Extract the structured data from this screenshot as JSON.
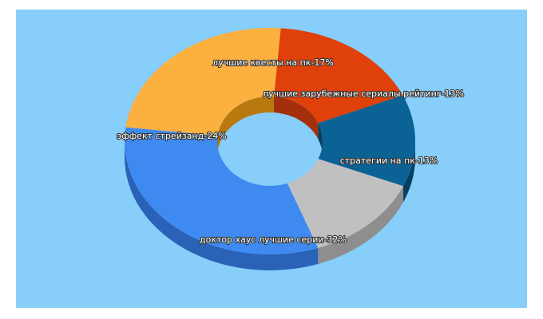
{
  "chart_data": {
    "type": "pie",
    "style": "3d-donut",
    "background": "#87CEFA",
    "label_color": "#ffffff",
    "label_stroke": "#333333",
    "slices": [
      {
        "label": "лучшие квесты на пк-17%",
        "value": 17,
        "color": "#E0400A",
        "side_color": "#A3300A"
      },
      {
        "label": "лучшие зарубежные сериалы рейтинг-13%",
        "value": 13,
        "color": "#0B6295",
        "side_color": "#083F5E"
      },
      {
        "label": "стратегии на пк-13%",
        "value": 13,
        "color": "#C0C0C0",
        "side_color": "#8E8E8E"
      },
      {
        "label": "доктор хаус лучшие серии-32%",
        "value": 32,
        "color": "#3F8AF0",
        "side_color": "#2A62B8"
      },
      {
        "label": "эффект стрейзанд-24%",
        "value": 24,
        "color": "#FBB040",
        "side_color": "#B8790F"
      }
    ]
  }
}
